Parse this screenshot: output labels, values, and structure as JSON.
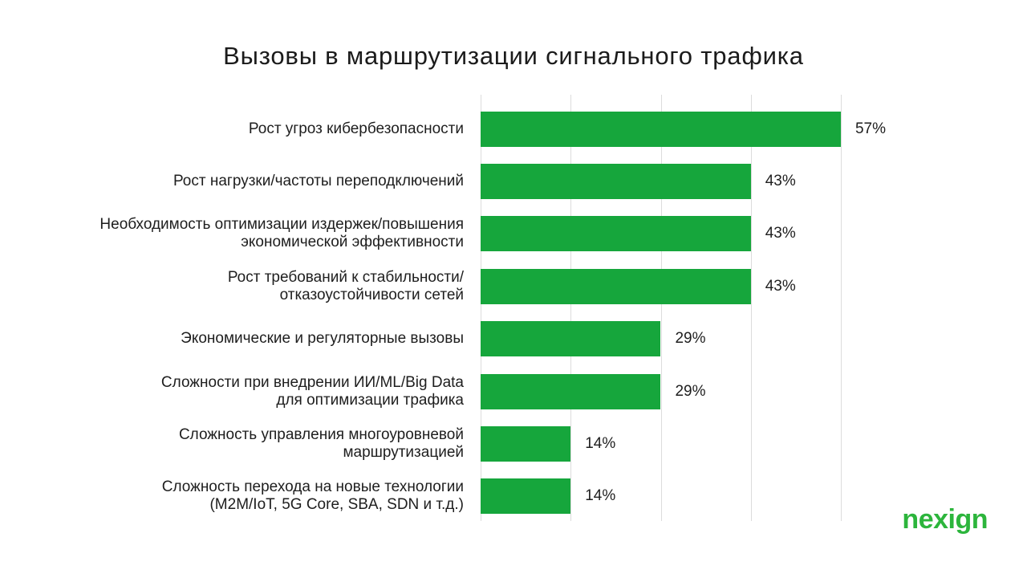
{
  "chart_data": {
    "type": "bar",
    "orientation": "horizontal",
    "title": "Вызовы в маршрутизации сигнального трафика",
    "categories": [
      "Рост угроз кибербезопасности",
      "Рост нагрузки/частоты переподключений",
      "Необходимость оптимизации издержек/повышения\nэкономической эффективности",
      "Рост требований к стабильности/\nотказоустойчивости сетей",
      "Экономические и регуляторные вызовы",
      "Сложности при внедрении ИИ/ML/Big Data\nдля оптимизации трафика",
      "Сложность управления многоуровневой\nмаршрутизацией",
      "Сложность перехода на новые технологии\n(M2M/IoT, 5G Core, SBA, SDN и т.д.)"
    ],
    "values": [
      57,
      43,
      43,
      43,
      29,
      29,
      14,
      14
    ],
    "value_labels": [
      "57%",
      "43%",
      "43%",
      "43%",
      "29%",
      "29%",
      "14%",
      "14%"
    ],
    "xlabel": "",
    "ylabel": "",
    "xlim": [
      0,
      57.1429
    ],
    "gridline_step_pct": 14.2857,
    "gridlines": "vertical",
    "legend": "none",
    "bar_color": "#16A63C",
    "gridline_color": "#DCDCDC",
    "text_color": "#1E1E1E"
  },
  "branding": {
    "logo_text": "nexign",
    "logo_color": "#2CB53C"
  }
}
